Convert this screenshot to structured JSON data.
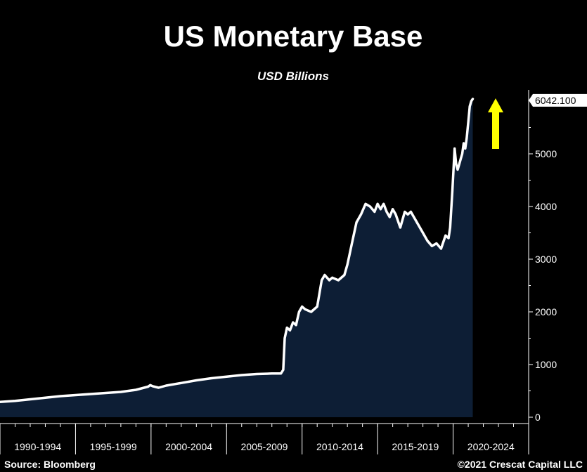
{
  "chart_data": {
    "type": "area",
    "title": "US Monetary Base",
    "subtitle": "USD Billions",
    "xlabel": "",
    "ylabel": "",
    "x_categories": [
      "1990-1994",
      "1995-1999",
      "2000-2004",
      "2005-2009",
      "2010-2014",
      "2015-2019",
      "2020-2024"
    ],
    "x_range": [
      1990,
      2025
    ],
    "ylim": [
      0,
      6400
    ],
    "yticks": [
      0,
      1000,
      2000,
      3000,
      4000,
      5000
    ],
    "last_value_label": "6042.100",
    "legend": "none",
    "grid": false,
    "series": [
      {
        "name": "US Monetary Base",
        "x": [
          1990.0,
          1991.0,
          1992.0,
          1993.0,
          1994.0,
          1995.0,
          1996.0,
          1997.0,
          1998.0,
          1999.0,
          1999.8,
          1999.95,
          2000.1,
          2000.5,
          2001.0,
          2002.0,
          2003.0,
          2004.0,
          2005.0,
          2006.0,
          2007.0,
          2008.0,
          2008.6,
          2008.75,
          2008.85,
          2009.0,
          2009.2,
          2009.4,
          2009.6,
          2009.8,
          2010.0,
          2010.2,
          2010.6,
          2011.0,
          2011.3,
          2011.5,
          2011.8,
          2012.0,
          2012.4,
          2012.8,
          2013.0,
          2013.3,
          2013.6,
          2013.9,
          2014.2,
          2014.5,
          2014.8,
          2015.0,
          2015.2,
          2015.4,
          2015.6,
          2015.8,
          2016.0,
          2016.2,
          2016.5,
          2016.8,
          2017.0,
          2017.2,
          2017.4,
          2017.6,
          2017.8,
          2018.0,
          2018.3,
          2018.6,
          2018.9,
          2019.2,
          2019.5,
          2019.7,
          2019.8,
          2019.95,
          2020.1,
          2020.2,
          2020.3,
          2020.4,
          2020.5,
          2020.6,
          2020.7,
          2020.8,
          2020.9,
          2021.0,
          2021.1,
          2021.2,
          2021.3
        ],
        "values": [
          290,
          310,
          340,
          370,
          400,
          420,
          440,
          460,
          480,
          520,
          580,
          610,
          590,
          560,
          600,
          650,
          700,
          740,
          770,
          800,
          820,
          830,
          830,
          900,
          1500,
          1700,
          1650,
          1800,
          1750,
          2000,
          2100,
          2050,
          2000,
          2100,
          2600,
          2700,
          2600,
          2650,
          2600,
          2700,
          2900,
          3300,
          3700,
          3850,
          4050,
          4000,
          3900,
          4050,
          3950,
          4050,
          3900,
          3800,
          3950,
          3850,
          3600,
          3900,
          3850,
          3900,
          3800,
          3700,
          3600,
          3500,
          3350,
          3250,
          3300,
          3200,
          3450,
          3400,
          3600,
          4300,
          5100,
          4800,
          4700,
          4800,
          4900,
          5000,
          5200,
          5100,
          5300,
          5600,
          5900,
          6000,
          6042.1
        ]
      }
    ],
    "annotations": [
      "up-arrow yellow"
    ],
    "colors": {
      "background": "#000000",
      "area_fill": "#0d1e35",
      "line": "#ffffff",
      "arrow": "#ffff00",
      "text": "#ffffff"
    }
  },
  "footer": {
    "source": "Source: Bloomberg",
    "copyright": "©2021 Crescat Capital LLC"
  }
}
